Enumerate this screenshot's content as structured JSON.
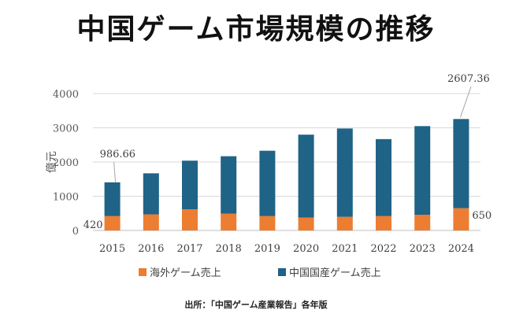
{
  "chart_data": {
    "type": "bar",
    "stacked": true,
    "title": "中国ゲーム市場規模の推移",
    "ylabel": "億元",
    "ylim": [
      0,
      4000
    ],
    "yticks": [
      0,
      1000,
      2000,
      3000,
      4000
    ],
    "categories": [
      "2015",
      "2016",
      "2017",
      "2018",
      "2019",
      "2020",
      "2021",
      "2022",
      "2023",
      "2024"
    ],
    "series": [
      {
        "name": "海外ゲーム売上",
        "color": "#ed7d31",
        "values": [
          420,
          470,
          620,
          490,
          420,
          380,
          400,
          420,
          460,
          650
        ]
      },
      {
        "name": "中国国産ゲーム売上",
        "color": "#1f6387",
        "values": [
          986.66,
          1200,
          1420,
          1680,
          1910,
          2420,
          2580,
          2250,
          2590,
          2607.36
        ]
      }
    ],
    "annotations": [
      {
        "text": "986.66",
        "series": 1,
        "index": 0
      },
      {
        "text": "420",
        "series": 0,
        "index": 0
      },
      {
        "text": "2607.36",
        "series": 1,
        "index": 9
      },
      {
        "text": "650",
        "series": 0,
        "index": 9
      }
    ],
    "legend_position": "bottom",
    "gridlines": true
  },
  "source": "出所：「中国ゲーム産業報告」各年版"
}
